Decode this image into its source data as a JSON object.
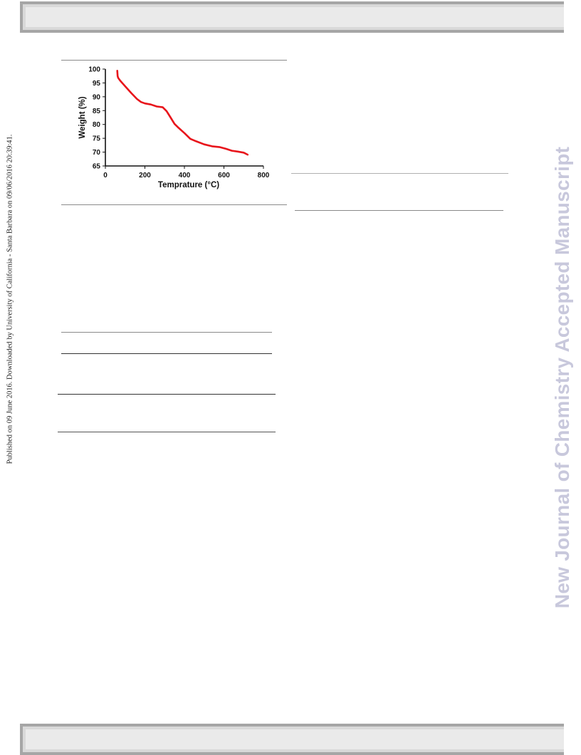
{
  "journal_watermark": "New Journal of Chemistry Accepted Manuscript",
  "download_notice": "Published on 09 June 2016. Downloaded by University of California - Santa Barbara on 09/06/2016 20:39:41.",
  "chart_data": {
    "type": "line",
    "xlabel": "Temprature (°C)",
    "ylabel": "Weight (%)",
    "xlim": [
      0,
      800
    ],
    "ylim": [
      65,
      100
    ],
    "xticks": [
      0,
      200,
      400,
      600,
      800
    ],
    "yticks": [
      65,
      70,
      75,
      80,
      85,
      90,
      95,
      100
    ],
    "grid": false,
    "series": [
      {
        "color": "#e8141b",
        "x": [
          60,
          62,
          65,
          75,
          100,
          130,
          160,
          180,
          200,
          230,
          260,
          290,
          310,
          330,
          350,
          370,
          400,
          430,
          460,
          500,
          540,
          580,
          610,
          640,
          670,
          700,
          720
        ],
        "y": [
          99.4,
          97.5,
          96.8,
          95.8,
          93.8,
          91.4,
          89.2,
          88.1,
          87.6,
          87.2,
          86.5,
          86.2,
          84.8,
          82.5,
          80.2,
          78.8,
          76.9,
          74.8,
          73.9,
          72.8,
          72.1,
          71.8,
          71.2,
          70.5,
          70.2,
          69.8,
          69.1
        ]
      }
    ]
  }
}
